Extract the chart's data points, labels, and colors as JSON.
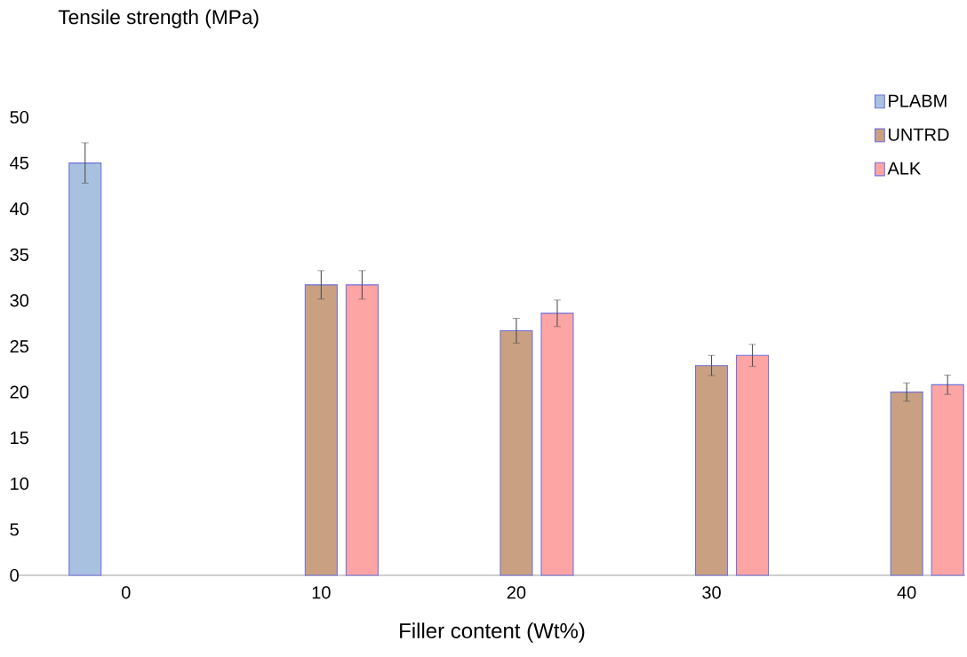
{
  "chart_data": {
    "type": "bar",
    "ylabel": "Tensile strength (MPa)",
    "xlabel": "Filler content (Wt%)",
    "categories": [
      "0",
      "10",
      "20",
      "30",
      "40"
    ],
    "series": [
      {
        "name": "PLABM",
        "color": "#a9c1e0",
        "values": [
          45,
          null,
          null,
          null,
          null
        ],
        "errors": [
          2.2,
          null,
          null,
          null,
          null
        ]
      },
      {
        "name": "UNTRD",
        "color": "#c9a081",
        "values": [
          null,
          31.7,
          26.7,
          22.9,
          20.0
        ],
        "errors": [
          null,
          1.55,
          1.35,
          1.1,
          1.0
        ]
      },
      {
        "name": "ALK",
        "color": "#fda5a5",
        "values": [
          null,
          31.7,
          28.6,
          24.0,
          20.8
        ],
        "errors": [
          null,
          1.55,
          1.45,
          1.2,
          1.05
        ]
      }
    ],
    "ylim": [
      0,
      50
    ],
    "yticks": [
      0,
      5,
      10,
      15,
      20,
      25,
      30,
      35,
      40,
      45,
      50
    ],
    "grid": false,
    "legend": "top right"
  }
}
